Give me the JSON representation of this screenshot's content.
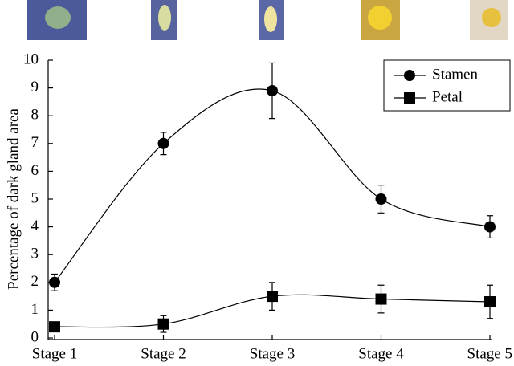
{
  "chart_data": {
    "type": "line",
    "categories": [
      "Stage 1",
      "Stage 2",
      "Stage 3",
      "Stage 4",
      "Stage 5"
    ],
    "y_label": "Percentage of dark gland area",
    "ylim": [
      0,
      10
    ],
    "yticks": [
      0,
      1,
      2,
      3,
      4,
      5,
      6,
      7,
      8,
      9,
      10
    ],
    "legend": "top-right",
    "series": [
      {
        "name": "Stamen",
        "color": "#000000",
        "marker": "circle",
        "values": [
          2,
          7,
          8.9,
          5,
          4
        ],
        "errors": [
          0.3,
          0.4,
          1.0,
          0.5,
          0.4
        ]
      },
      {
        "name": "Petal",
        "color": "#000000",
        "marker": "square",
        "values": [
          0.4,
          0.5,
          1.5,
          1.4,
          1.3
        ],
        "errors": [
          0.1,
          0.3,
          0.5,
          0.5,
          0.6
        ]
      }
    ]
  }
}
